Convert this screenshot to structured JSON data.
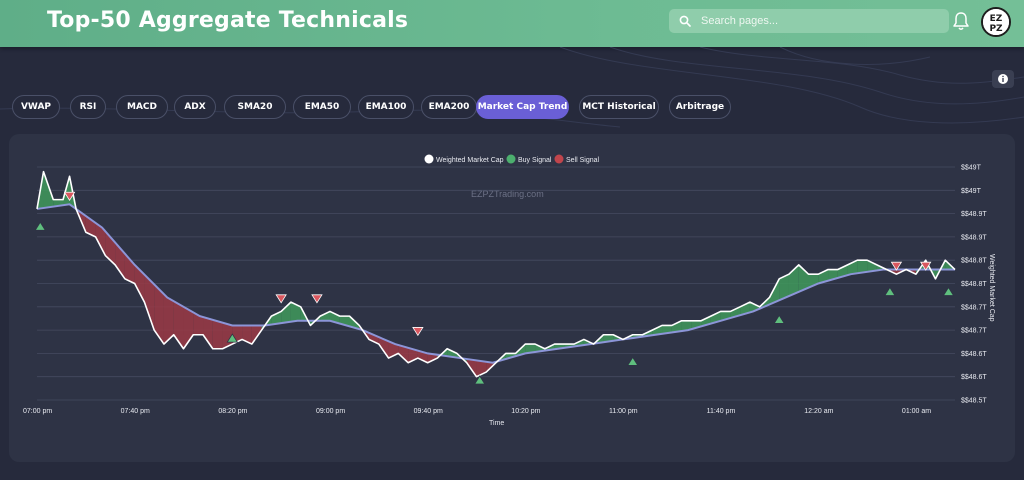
{
  "header": {
    "title": "Top-50 Aggregate Technicals",
    "search_placeholder": "Search pages...",
    "avatar_text": "EZPZ"
  },
  "tabs": [
    {
      "label": "VWAP",
      "active": false
    },
    {
      "label": "RSI",
      "active": false
    },
    {
      "label": "MACD",
      "active": false
    },
    {
      "label": "ADX",
      "active": false
    },
    {
      "label": "SMA20",
      "active": false
    },
    {
      "label": "EMA50",
      "active": false
    },
    {
      "label": "EMA100",
      "active": false
    },
    {
      "label": "EMA200",
      "active": false
    },
    {
      "label": "Market Cap Trend",
      "active": true
    },
    {
      "label": "MCT Historical",
      "active": false
    },
    {
      "label": "Arbitrage",
      "active": false
    }
  ],
  "colors": {
    "accent": "#6a5fd6",
    "header": "#6dbb93",
    "buy": "#4caf6e",
    "sell": "#c0454c",
    "ema": "#8c95d8"
  },
  "chart": {
    "watermark": "EZPZTrading.com"
  },
  "chart_data": {
    "type": "line",
    "xlabel": "Time",
    "ylabel": "Weighted Market Cap",
    "legend": [
      "Weighted Market Cap",
      "Buy Signal",
      "Sell Signal"
    ],
    "legend_position": "top-center",
    "grid": true,
    "x_ticks": [
      "07:00 pm",
      "07:40 pm",
      "08:20 pm",
      "09:00 pm",
      "09:40 pm",
      "10:20 pm",
      "11:00 pm",
      "11:40 pm",
      "12:20 am",
      "01:00 am"
    ],
    "y_ticks": [
      "$$49T",
      "$$49T",
      "$$48.9T",
      "$$48.9T",
      "$$48.8T",
      "$$48.8T",
      "$$48.7T",
      "$$48.7T",
      "$$48.6T",
      "$$48.6T",
      "$$48.5T"
    ],
    "weighted_market_cap": [
      [
        0,
        48.91
      ],
      [
        2,
        48.99
      ],
      [
        5,
        48.93
      ],
      [
        8,
        48.93
      ],
      [
        10,
        48.98
      ],
      [
        12,
        48.91
      ],
      [
        15,
        48.86
      ],
      [
        18,
        48.85
      ],
      [
        21,
        48.81
      ],
      [
        24,
        48.79
      ],
      [
        27,
        48.76
      ],
      [
        30,
        48.75
      ],
      [
        33,
        48.71
      ],
      [
        36,
        48.65
      ],
      [
        39,
        48.62
      ],
      [
        42,
        48.64
      ],
      [
        45,
        48.61
      ],
      [
        48,
        48.64
      ],
      [
        51,
        48.64
      ],
      [
        54,
        48.61
      ],
      [
        57,
        48.61
      ],
      [
        60,
        48.62
      ],
      [
        63,
        48.63
      ],
      [
        66,
        48.62
      ],
      [
        69,
        48.65
      ],
      [
        72,
        48.68
      ],
      [
        75,
        48.69
      ],
      [
        78,
        48.71
      ],
      [
        81,
        48.7
      ],
      [
        84,
        48.66
      ],
      [
        87,
        48.68
      ],
      [
        90,
        48.69
      ],
      [
        93,
        48.68
      ],
      [
        96,
        48.68
      ],
      [
        99,
        48.66
      ],
      [
        102,
        48.63
      ],
      [
        105,
        48.62
      ],
      [
        108,
        48.59
      ],
      [
        111,
        48.6
      ],
      [
        114,
        48.58
      ],
      [
        117,
        48.59
      ],
      [
        120,
        48.58
      ],
      [
        123,
        48.59
      ],
      [
        126,
        48.61
      ],
      [
        129,
        48.6
      ],
      [
        132,
        48.58
      ],
      [
        135,
        48.55
      ],
      [
        138,
        48.56
      ],
      [
        141,
        48.58
      ],
      [
        144,
        48.6
      ],
      [
        147,
        48.6
      ],
      [
        150,
        48.62
      ],
      [
        153,
        48.62
      ],
      [
        156,
        48.61
      ],
      [
        159,
        48.62
      ],
      [
        162,
        48.62
      ],
      [
        165,
        48.62
      ],
      [
        168,
        48.63
      ],
      [
        171,
        48.62
      ],
      [
        174,
        48.64
      ],
      [
        177,
        48.64
      ],
      [
        180,
        48.63
      ],
      [
        183,
        48.64
      ],
      [
        186,
        48.64
      ],
      [
        189,
        48.65
      ],
      [
        192,
        48.66
      ],
      [
        195,
        48.66
      ],
      [
        198,
        48.67
      ],
      [
        201,
        48.67
      ],
      [
        204,
        48.67
      ],
      [
        207,
        48.68
      ],
      [
        210,
        48.69
      ],
      [
        213,
        48.69
      ],
      [
        216,
        48.7
      ],
      [
        219,
        48.71
      ],
      [
        222,
        48.7
      ],
      [
        225,
        48.72
      ],
      [
        228,
        48.76
      ],
      [
        231,
        48.77
      ],
      [
        234,
        48.79
      ],
      [
        237,
        48.77
      ],
      [
        240,
        48.77
      ],
      [
        243,
        48.78
      ],
      [
        246,
        48.78
      ],
      [
        249,
        48.79
      ],
      [
        252,
        48.8
      ],
      [
        255,
        48.8
      ],
      [
        258,
        48.79
      ],
      [
        261,
        48.78
      ],
      [
        264,
        48.77
      ],
      [
        267,
        48.78
      ],
      [
        270,
        48.77
      ],
      [
        273,
        48.8
      ],
      [
        276,
        48.76
      ],
      [
        279,
        48.8
      ],
      [
        282,
        48.78
      ]
    ],
    "ema_line": [
      [
        0,
        48.91
      ],
      [
        10,
        48.92
      ],
      [
        20,
        48.87
      ],
      [
        30,
        48.79
      ],
      [
        40,
        48.72
      ],
      [
        50,
        48.68
      ],
      [
        60,
        48.66
      ],
      [
        70,
        48.66
      ],
      [
        80,
        48.67
      ],
      [
        90,
        48.67
      ],
      [
        100,
        48.65
      ],
      [
        110,
        48.62
      ],
      [
        120,
        48.6
      ],
      [
        130,
        48.59
      ],
      [
        140,
        48.58
      ],
      [
        150,
        48.6
      ],
      [
        160,
        48.61
      ],
      [
        170,
        48.62
      ],
      [
        180,
        48.63
      ],
      [
        190,
        48.64
      ],
      [
        200,
        48.65
      ],
      [
        210,
        48.67
      ],
      [
        220,
        48.69
      ],
      [
        230,
        48.72
      ],
      [
        240,
        48.75
      ],
      [
        250,
        48.77
      ],
      [
        260,
        48.78
      ],
      [
        270,
        48.78
      ],
      [
        282,
        48.78
      ]
    ],
    "buy_signals": [
      [
        1,
        48.89
      ],
      [
        60,
        48.65
      ],
      [
        136,
        48.56
      ],
      [
        183,
        48.6
      ],
      [
        228,
        48.69
      ],
      [
        262,
        48.75
      ],
      [
        280,
        48.75
      ]
    ],
    "sell_signals": [
      [
        10,
        48.92
      ],
      [
        75,
        48.7
      ],
      [
        86,
        48.7
      ],
      [
        117,
        48.63
      ],
      [
        264,
        48.77
      ],
      [
        273,
        48.77
      ]
    ],
    "x_tick_positions": [
      0,
      30,
      60,
      90,
      120,
      150,
      180,
      210,
      240,
      270
    ],
    "x_range": [
      0,
      282
    ],
    "y_range": [
      48.5,
      49.0
    ]
  }
}
